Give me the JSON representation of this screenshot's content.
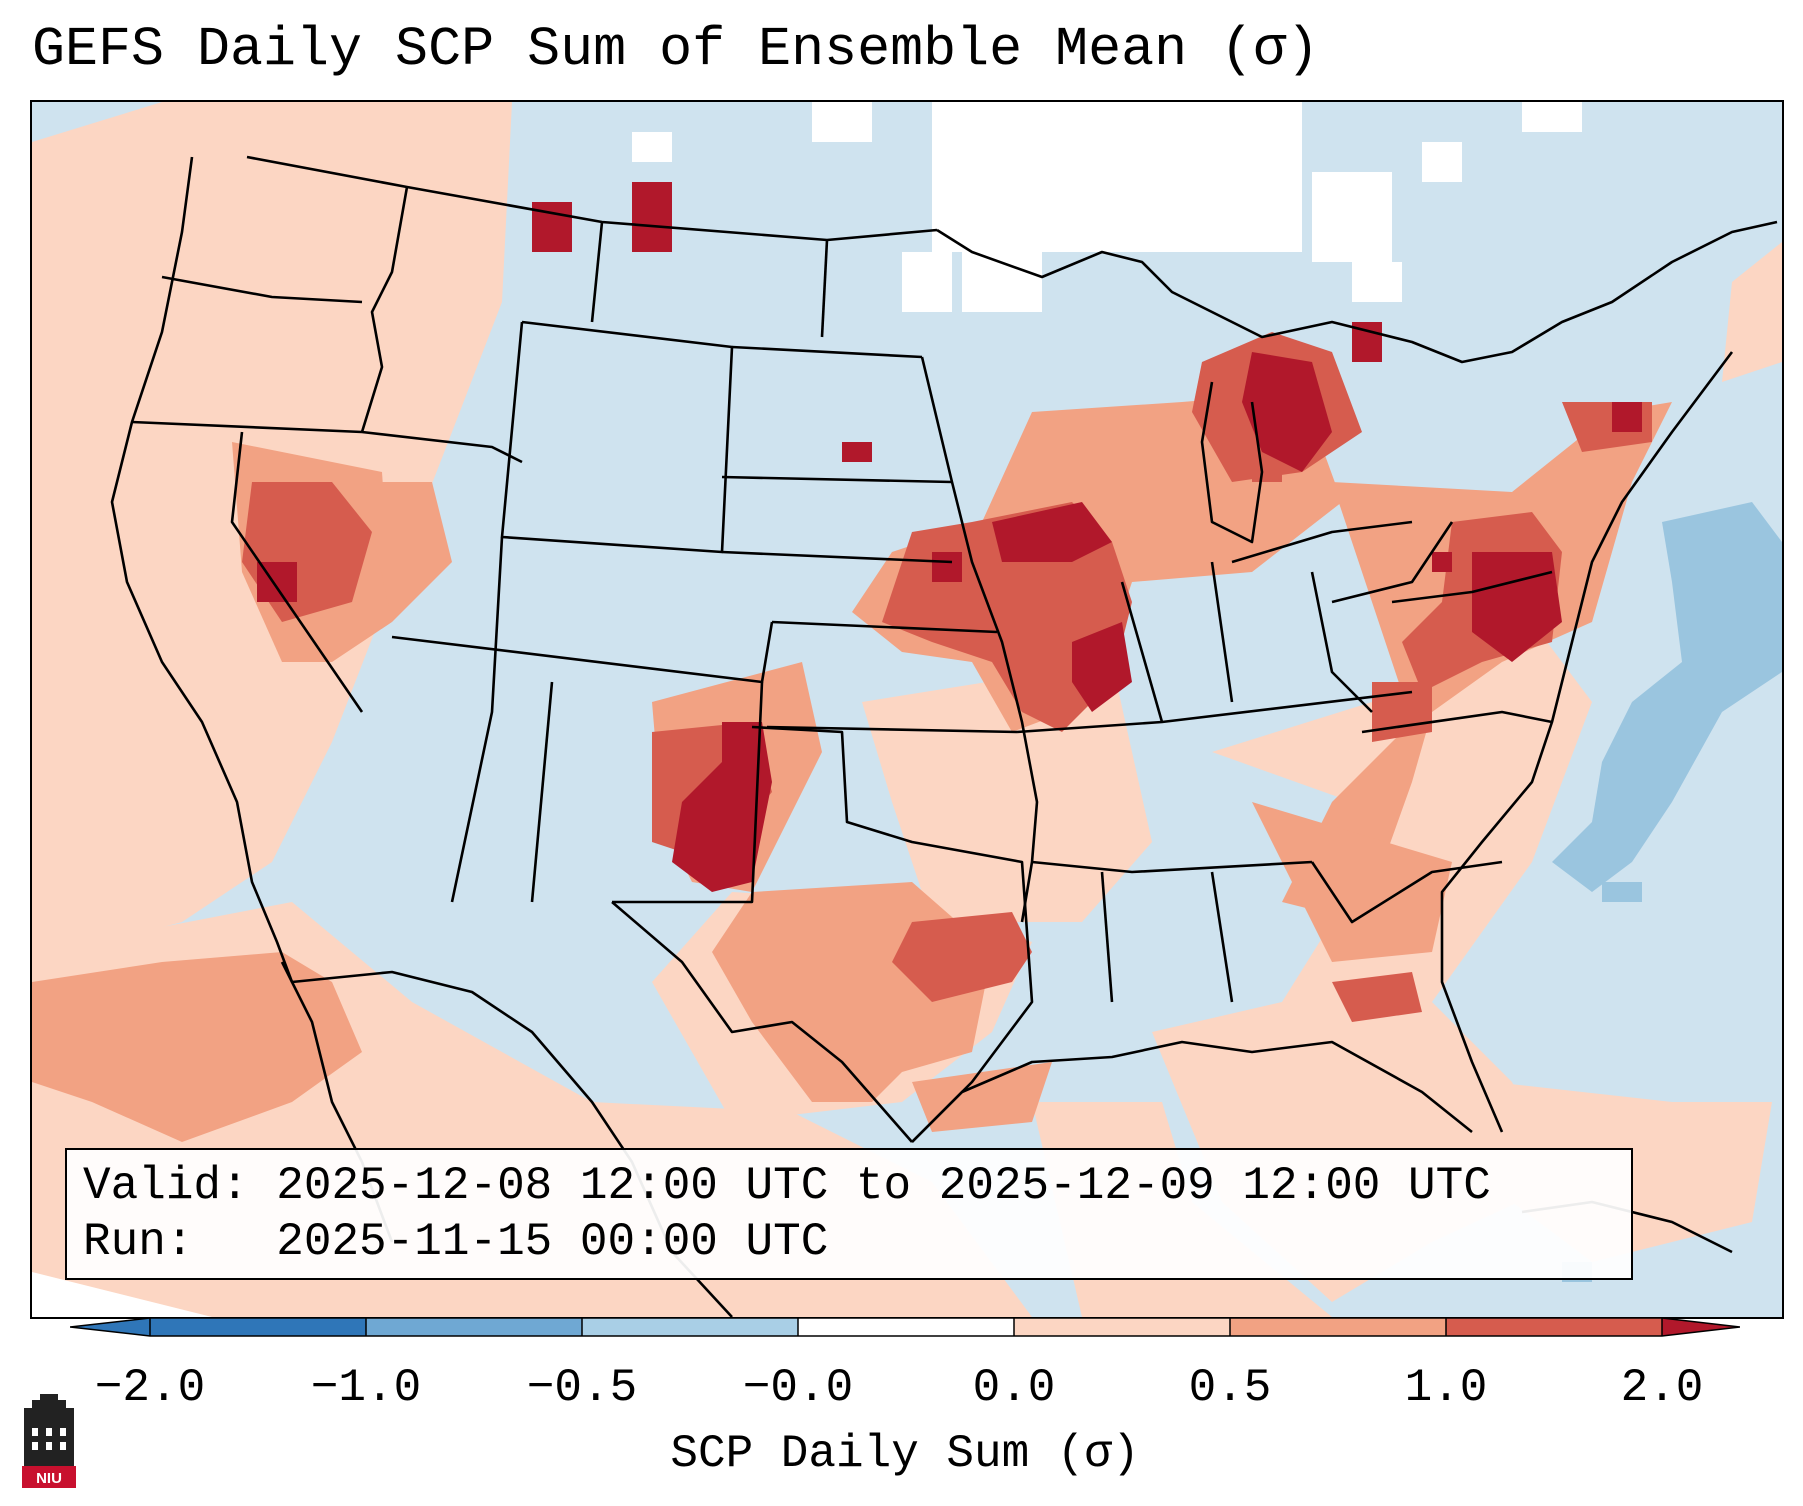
{
  "title": "GEFS Daily SCP Sum of Ensemble Mean (σ)",
  "info": {
    "valid_line": "Valid: 2025-12-08 12:00 UTC to 2025-12-09 12:00 UTC",
    "run_line": "Run:   2025-11-15 00:00 UTC"
  },
  "colorbar": {
    "label": "SCP Daily Sum (σ)",
    "ticks": [
      "−2.0",
      "−1.0",
      "−0.5",
      "−0.0",
      "0.0",
      "0.5",
      "1.0",
      "2.0"
    ],
    "colors": [
      "#2f76b8",
      "#6fa8d3",
      "#a9cfe6",
      "#dceaf3",
      "#fbe3d6",
      "#f2a283",
      "#d65c4e",
      "#b1182b"
    ],
    "extend": "both"
  },
  "legend_colors": {
    "background": "#cfe3ef",
    "light_positive": "#fcd6c3",
    "moderate_positive": "#f2a283",
    "strong_positive": "#d65c4e",
    "extreme_positive": "#b1182b",
    "negative": "#9ac5df",
    "missing": "#ffffff"
  },
  "logo": {
    "text": "NIU",
    "icon": "niu-logo-icon"
  }
}
